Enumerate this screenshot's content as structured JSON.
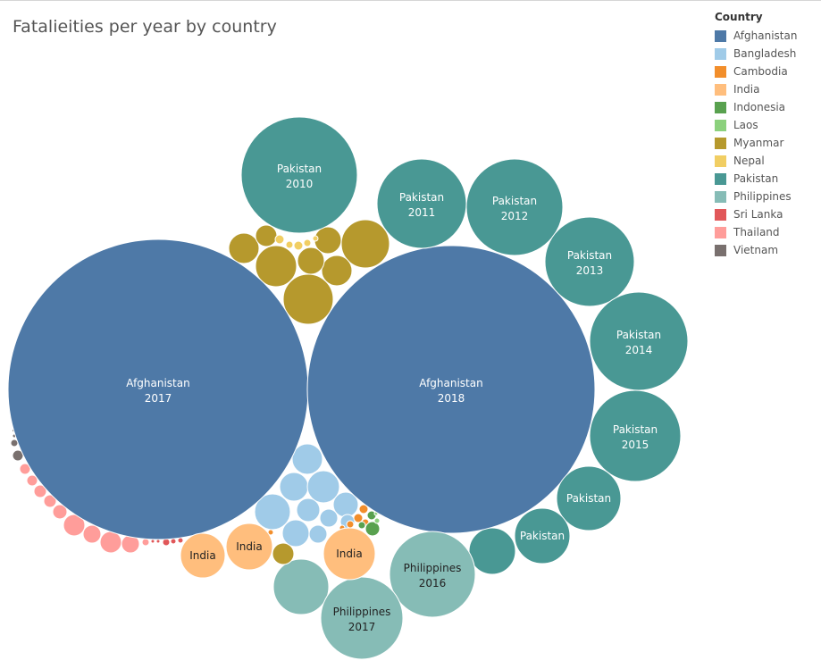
{
  "title": "Fatalieities per year by country",
  "legend": {
    "title": "Country",
    "items": [
      {
        "label": "Afghanistan",
        "color": "#4e79a7"
      },
      {
        "label": "Bangladesh",
        "color": "#a0cbe8"
      },
      {
        "label": "Cambodia",
        "color": "#f28e2b"
      },
      {
        "label": "India",
        "color": "#ffbe7d"
      },
      {
        "label": "Indonesia",
        "color": "#59a14f"
      },
      {
        "label": "Laos",
        "color": "#8cd17d"
      },
      {
        "label": "Myanmar",
        "color": "#b6992d"
      },
      {
        "label": "Nepal",
        "color": "#f1ce63"
      },
      {
        "label": "Pakistan",
        "color": "#499894"
      },
      {
        "label": "Philippines",
        "color": "#86bcb6"
      },
      {
        "label": "Sri Lanka",
        "color": "#e15759"
      },
      {
        "label": "Thailand",
        "color": "#ff9d9a"
      },
      {
        "label": "Vietnam",
        "color": "#79706e"
      }
    ]
  },
  "chart_data": {
    "type": "bubble",
    "title": "Fatalieities per year by country",
    "legend_placement": "top-right",
    "size_encoding": "fatalities (relative circle area; no values printed)",
    "labeled_bubbles": [
      {
        "country": "Afghanistan",
        "year": "2017",
        "relative_size": 1.0
      },
      {
        "country": "Afghanistan",
        "year": "2018",
        "relative_size": 0.93
      },
      {
        "country": "Pakistan",
        "year": "2010",
        "relative_size": 0.15
      },
      {
        "country": "Pakistan",
        "year": "2011",
        "relative_size": 0.08
      },
      {
        "country": "Pakistan",
        "year": "2012",
        "relative_size": 0.1
      },
      {
        "country": "Pakistan",
        "year": "2013",
        "relative_size": 0.09
      },
      {
        "country": "Pakistan",
        "year": "2014",
        "relative_size": 0.11
      },
      {
        "country": "Pakistan",
        "year": "2015",
        "relative_size": 0.09
      },
      {
        "country": "Pakistan",
        "year": "",
        "relative_size": 0.046
      },
      {
        "country": "Pakistan",
        "year": "",
        "relative_size": 0.034
      },
      {
        "country": "Philippines",
        "year": "2016",
        "relative_size": 0.078
      },
      {
        "country": "Philippines",
        "year": "2017",
        "relative_size": 0.072
      },
      {
        "country": "India",
        "year": "",
        "relative_size": 0.024
      },
      {
        "country": "India",
        "year": "",
        "relative_size": 0.024
      },
      {
        "country": "India",
        "year": "",
        "relative_size": 0.03
      }
    ]
  }
}
